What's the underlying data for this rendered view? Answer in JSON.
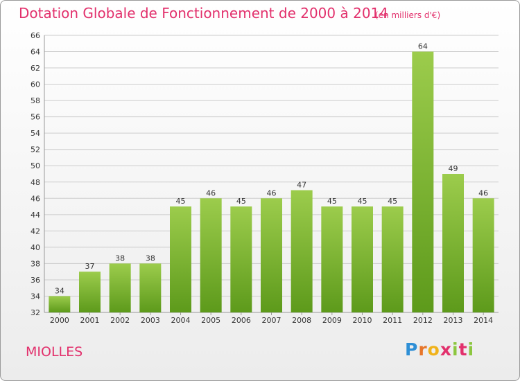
{
  "title": "Dotation Globale de Fonctionnement de 2000 à 2014",
  "unit_note": "(en milliers d'€)",
  "commune": "MIOLLES",
  "logo": {
    "text": "Proxiti",
    "colors": [
      "#2e8fd6",
      "#e7762a",
      "#f0b21a",
      "#e2306c",
      "#8cc63f"
    ]
  },
  "colors": {
    "title": "#e2306c",
    "bar_top": "#9ccc4c",
    "bar_bottom": "#5d9a1b",
    "grid": "#cccccc",
    "text": "#333333"
  },
  "chart_data": {
    "type": "bar",
    "title": "Dotation Globale de Fonctionnement de 2000 à 2014",
    "subtitle": "(en milliers d'€)",
    "xlabel": "",
    "ylabel": "",
    "categories": [
      "2000",
      "2001",
      "2002",
      "2003",
      "2004",
      "2005",
      "2006",
      "2007",
      "2008",
      "2009",
      "2010",
      "2011",
      "2012",
      "2013",
      "2014"
    ],
    "values": [
      34,
      37,
      38,
      38,
      45,
      46,
      45,
      46,
      47,
      45,
      45,
      45,
      64,
      49,
      46
    ],
    "ylim": [
      32,
      66
    ],
    "yticks": [
      32,
      34,
      36,
      38,
      40,
      42,
      44,
      46,
      48,
      50,
      52,
      54,
      56,
      58,
      60,
      62,
      64,
      66
    ],
    "grid": true,
    "data_labels": true,
    "legend": "none"
  }
}
